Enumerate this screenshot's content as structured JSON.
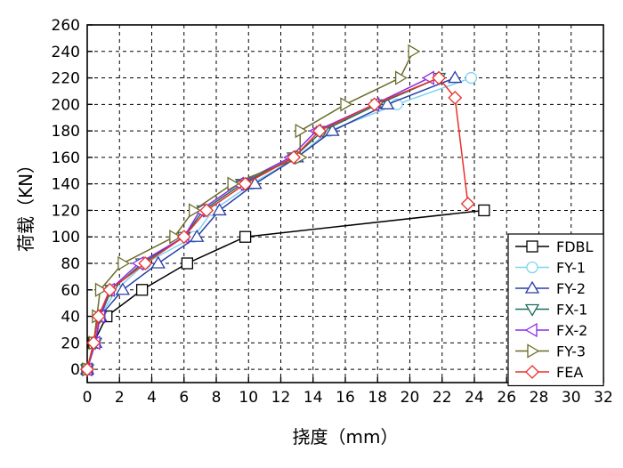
{
  "chart_data": {
    "type": "line",
    "xlabel": "挠度（mm）",
    "ylabel": "荷载（KN）",
    "xlim": [
      0,
      32
    ],
    "ylim": [
      -10,
      260
    ],
    "x_ticks": [
      0,
      2,
      4,
      6,
      8,
      10,
      12,
      14,
      16,
      18,
      20,
      22,
      24,
      26,
      28,
      30,
      32
    ],
    "y_ticks": [
      0,
      20,
      40,
      60,
      80,
      100,
      120,
      140,
      160,
      180,
      200,
      220,
      240,
      260
    ],
    "grid": true,
    "legend_position": "bottom-right",
    "series": [
      {
        "name": "FDBL",
        "color": "#000000",
        "marker": "square",
        "points": [
          [
            0,
            0
          ],
          [
            0.4,
            20
          ],
          [
            1.2,
            40
          ],
          [
            3.4,
            60
          ],
          [
            6.2,
            80
          ],
          [
            9.8,
            100
          ],
          [
            24.6,
            120
          ]
        ]
      },
      {
        "name": "FY-1",
        "color": "#7fd3f0",
        "marker": "circle",
        "points": [
          [
            0,
            0
          ],
          [
            0.5,
            20
          ],
          [
            0.8,
            40
          ],
          [
            1.8,
            60
          ],
          [
            3.6,
            80
          ],
          [
            6.6,
            100
          ],
          [
            7.8,
            120
          ],
          [
            10.2,
            140
          ],
          [
            13.0,
            160
          ],
          [
            15.0,
            180
          ],
          [
            19.2,
            200
          ],
          [
            23.8,
            220
          ]
        ]
      },
      {
        "name": "FY-2",
        "color": "#2a3fa8",
        "marker": "triangle-up",
        "points": [
          [
            0,
            0
          ],
          [
            0.5,
            20
          ],
          [
            0.8,
            40
          ],
          [
            2.2,
            60
          ],
          [
            4.4,
            80
          ],
          [
            6.8,
            100
          ],
          [
            8.2,
            120
          ],
          [
            10.4,
            140
          ],
          [
            13.0,
            160
          ],
          [
            15.2,
            180
          ],
          [
            18.6,
            200
          ],
          [
            22.8,
            220
          ]
        ]
      },
      {
        "name": "FX-1",
        "color": "#1f6f5c",
        "marker": "triangle-down",
        "points": [
          [
            0,
            0
          ],
          [
            0.5,
            20
          ],
          [
            0.8,
            40
          ],
          [
            1.5,
            60
          ],
          [
            3.4,
            80
          ],
          [
            6.0,
            100
          ],
          [
            7.2,
            120
          ],
          [
            9.6,
            140
          ],
          [
            12.8,
            160
          ],
          [
            14.6,
            180
          ],
          [
            18.0,
            200
          ],
          [
            21.8,
            220
          ]
        ]
      },
      {
        "name": "FX-2",
        "color": "#8a2be2",
        "marker": "triangle-left",
        "points": [
          [
            0,
            0
          ],
          [
            0.5,
            20
          ],
          [
            0.8,
            40
          ],
          [
            1.4,
            60
          ],
          [
            3.2,
            80
          ],
          [
            6.0,
            100
          ],
          [
            7.0,
            120
          ],
          [
            9.4,
            140
          ],
          [
            12.6,
            160
          ],
          [
            14.2,
            180
          ],
          [
            17.8,
            200
          ],
          [
            21.2,
            220
          ]
        ]
      },
      {
        "name": "FY-3",
        "color": "#6b6b2a",
        "marker": "triangle-right",
        "points": [
          [
            0,
            0
          ],
          [
            0.4,
            20
          ],
          [
            0.6,
            40
          ],
          [
            0.8,
            60
          ],
          [
            2.2,
            80
          ],
          [
            5.4,
            100
          ],
          [
            6.6,
            120
          ],
          [
            9.0,
            140
          ],
          [
            13.2,
            160
          ],
          [
            13.2,
            180
          ],
          [
            16.0,
            200
          ],
          [
            19.4,
            220
          ],
          [
            20.2,
            240
          ]
        ]
      },
      {
        "name": "FEA",
        "color": "#e8312a",
        "marker": "diamond",
        "points": [
          [
            0,
            0
          ],
          [
            0.4,
            20
          ],
          [
            0.7,
            40
          ],
          [
            1.4,
            60
          ],
          [
            3.6,
            80
          ],
          [
            6.0,
            100
          ],
          [
            7.4,
            120
          ],
          [
            9.8,
            140
          ],
          [
            12.8,
            160
          ],
          [
            14.4,
            180
          ],
          [
            17.8,
            200
          ],
          [
            21.8,
            220
          ],
          [
            22.8,
            205
          ],
          [
            23.6,
            125
          ]
        ]
      }
    ]
  }
}
